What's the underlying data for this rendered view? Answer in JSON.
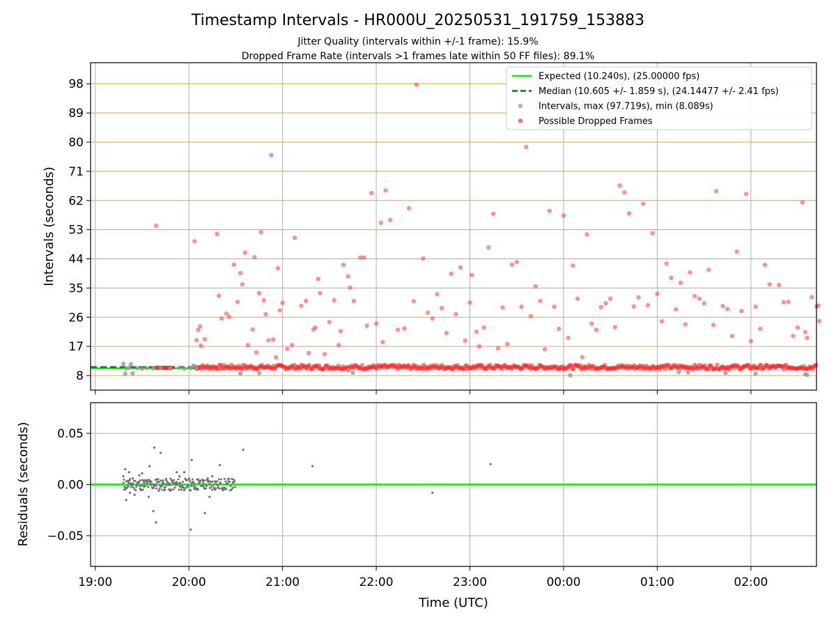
{
  "chart_data": [
    {
      "type": "scatter",
      "title": "Timestamp Intervals - HR000U_20250531_191759_153883",
      "subtitle_lines": [
        "Jitter Quality (intervals within +/-1 frame): 15.9%",
        "Dropped Frame Rate (intervals >1 frames late within 50 FF files): 89.1%"
      ],
      "ylabel": "Intervals (seconds)",
      "xlabel": "",
      "x_units": "hours since 19:00 UTC (ticks labelled as clock times)",
      "xlim": [
        -0.05,
        7.7
      ],
      "ylim": [
        3.5,
        104.5
      ],
      "yticks": [
        8,
        17,
        26,
        35,
        44,
        53,
        62,
        71,
        80,
        89,
        98
      ],
      "ytick_labels": [
        "8",
        "17",
        "26",
        "35",
        "44",
        "53",
        "62",
        "71",
        "80",
        "89",
        "98"
      ],
      "hlines": {
        "values": [
          8,
          17,
          26,
          35,
          44,
          53,
          62,
          71,
          80,
          89,
          98
        ],
        "color": "#d4b86a"
      },
      "grid": true,
      "legend_position": "top-right",
      "legend": [
        {
          "label": "Expected (10.240s), (25.00000 fps)",
          "kind": "line",
          "color": "#00ee00"
        },
        {
          "label": "Median (10.605 +/- 1.859 s), (24.14477 +/- 2.41 fps)",
          "kind": "dashed",
          "color": "#008000"
        },
        {
          "label": "Intervals, max (97.719s), min (8.089s)",
          "kind": "dot",
          "color": "#999999"
        },
        {
          "label": "Possible Dropped Frames",
          "kind": "dot",
          "color": "#ff3b3b"
        }
      ],
      "series": [
        {
          "name": "Expected (10.240s), (25.00000 fps)",
          "kind": "hline",
          "value": 10.24,
          "x_range": [
            -0.05,
            1.1
          ],
          "color": "#00ee00"
        },
        {
          "name": "Median (10.605 +/- 1.859 s), (24.14477 +/- 2.41 fps)",
          "kind": "hline",
          "value": 10.605,
          "x_range": [
            -0.05,
            1.1
          ],
          "color": "#008000"
        },
        {
          "name": "Intervals, max (97.719s), min (8.089s)",
          "kind": "points",
          "color": "#999999",
          "points": [
            [
              0.3,
              11.6
            ],
            [
              0.32,
              8.6
            ],
            [
              0.38,
              11.5
            ],
            [
              0.4,
              8.7
            ],
            [
              0.33,
              10.2
            ],
            [
              0.36,
              10.4
            ],
            [
              0.45,
              10.3
            ],
            [
              0.5,
              10.1
            ],
            [
              0.55,
              10.3
            ],
            [
              0.62,
              10.2
            ],
            [
              0.7,
              10.3
            ],
            [
              0.8,
              10.2
            ],
            [
              0.9,
              10.4
            ],
            [
              0.95,
              10.1
            ],
            [
              1.02,
              10.3
            ],
            [
              1.05,
              11.0
            ],
            [
              1.08,
              10.2
            ],
            [
              1.55,
              8.7
            ],
            [
              1.75,
              8.8
            ],
            [
              2.7,
              9.6
            ],
            [
              2.75,
              8.9
            ],
            [
              5.07,
              8.1
            ],
            [
              6.23,
              9.1
            ],
            [
              6.33,
              9.0
            ],
            [
              6.73,
              8.8
            ],
            [
              7.05,
              8.6
            ],
            [
              7.58,
              8.4
            ],
            [
              7.6,
              8.2
            ]
          ]
        },
        {
          "name": "Possible Dropped Frames",
          "kind": "points",
          "color": "#ff3b3b",
          "points": [
            [
              0.65,
              54.2
            ],
            [
              1.06,
              49.4
            ],
            [
              1.08,
              18.9
            ],
            [
              1.1,
              22.1
            ],
            [
              1.12,
              23.2
            ],
            [
              1.13,
              17.2
            ],
            [
              1.17,
              19.2
            ],
            [
              1.3,
              51.7
            ],
            [
              1.32,
              32.6
            ],
            [
              1.35,
              25.6
            ],
            [
              1.4,
              27.1
            ],
            [
              1.43,
              26.1
            ],
            [
              1.48,
              42.2
            ],
            [
              1.52,
              30.7
            ],
            [
              1.55,
              39.6
            ],
            [
              1.57,
              36.1
            ],
            [
              1.6,
              45.9
            ],
            [
              1.63,
              17.4
            ],
            [
              1.68,
              22.2
            ],
            [
              1.7,
              44.5
            ],
            [
              1.72,
              15.1
            ],
            [
              1.75,
              33.4
            ],
            [
              1.77,
              52.2
            ],
            [
              1.8,
              31.2
            ],
            [
              1.82,
              26.9
            ],
            [
              1.85,
              18.9
            ],
            [
              1.88,
              76.0
            ],
            [
              1.9,
              19.1
            ],
            [
              1.93,
              13.6
            ],
            [
              1.95,
              41.1
            ],
            [
              1.97,
              28.1
            ],
            [
              2.0,
              30.4
            ],
            [
              2.05,
              16.2
            ],
            [
              2.1,
              17.4
            ],
            [
              2.13,
              50.5
            ],
            [
              2.2,
              29.5
            ],
            [
              2.25,
              31.0
            ],
            [
              2.28,
              14.9
            ],
            [
              2.33,
              22.2
            ],
            [
              2.35,
              22.8
            ],
            [
              2.38,
              37.8
            ],
            [
              2.4,
              33.4
            ],
            [
              2.45,
              14.6
            ],
            [
              2.5,
              24.5
            ],
            [
              2.55,
              31.2
            ],
            [
              2.6,
              17.4
            ],
            [
              2.62,
              21.7
            ],
            [
              2.65,
              42.1
            ],
            [
              2.7,
              38.6
            ],
            [
              2.72,
              35.1
            ],
            [
              2.76,
              31.0
            ],
            [
              2.83,
              44.4
            ],
            [
              2.87,
              44.4
            ],
            [
              2.9,
              23.4
            ],
            [
              2.95,
              64.3
            ],
            [
              3.0,
              24.0
            ],
            [
              3.05,
              55.1
            ],
            [
              3.07,
              18.3
            ],
            [
              3.1,
              65.1
            ],
            [
              3.15,
              56.0
            ],
            [
              3.23,
              22.1
            ],
            [
              3.3,
              22.5
            ],
            [
              3.35,
              59.6
            ],
            [
              3.4,
              30.9
            ],
            [
              3.43,
              97.7
            ],
            [
              3.5,
              44.1
            ],
            [
              3.55,
              27.4
            ],
            [
              3.6,
              25.6
            ],
            [
              3.65,
              33.1
            ],
            [
              3.7,
              28.8
            ],
            [
              3.75,
              21.1
            ],
            [
              3.8,
              39.4
            ],
            [
              3.85,
              26.9
            ],
            [
              3.9,
              41.3
            ],
            [
              3.95,
              18.8
            ],
            [
              4.0,
              30.5
            ],
            [
              4.02,
              39.0
            ],
            [
              4.07,
              21.5
            ],
            [
              4.1,
              17.0
            ],
            [
              4.15,
              22.8
            ],
            [
              4.2,
              47.5
            ],
            [
              4.25,
              57.9
            ],
            [
              4.3,
              16.4
            ],
            [
              4.35,
              29.0
            ],
            [
              4.4,
              17.7
            ],
            [
              4.45,
              42.2
            ],
            [
              4.5,
              43.0
            ],
            [
              4.55,
              29.2
            ],
            [
              4.6,
              78.5
            ],
            [
              4.65,
              26.3
            ],
            [
              4.7,
              35.5
            ],
            [
              4.75,
              31.0
            ],
            [
              4.8,
              16.1
            ],
            [
              4.85,
              58.8
            ],
            [
              4.9,
              29.2
            ],
            [
              4.95,
              22.4
            ],
            [
              5.0,
              57.3
            ],
            [
              5.05,
              19.6
            ],
            [
              5.1,
              41.9
            ],
            [
              5.15,
              31.7
            ],
            [
              5.2,
              13.7
            ],
            [
              5.25,
              51.5
            ],
            [
              5.3,
              24.0
            ],
            [
              5.35,
              22.1
            ],
            [
              5.4,
              29.1
            ],
            [
              5.45,
              30.3
            ],
            [
              5.5,
              31.7
            ],
            [
              5.55,
              22.9
            ],
            [
              5.6,
              66.6
            ],
            [
              5.65,
              64.5
            ],
            [
              5.7,
              58.0
            ],
            [
              5.75,
              29.3
            ],
            [
              5.8,
              32.1
            ],
            [
              5.85,
              61.0
            ],
            [
              5.9,
              29.7
            ],
            [
              5.95,
              51.9
            ],
            [
              6.0,
              33.2
            ],
            [
              6.05,
              24.7
            ],
            [
              6.1,
              42.5
            ],
            [
              6.15,
              38.1
            ],
            [
              6.2,
              28.4
            ],
            [
              6.25,
              36.6
            ],
            [
              6.3,
              23.8
            ],
            [
              6.35,
              39.8
            ],
            [
              6.4,
              32.5
            ],
            [
              6.45,
              31.7
            ],
            [
              6.5,
              30.3
            ],
            [
              6.55,
              40.6
            ],
            [
              6.6,
              23.6
            ],
            [
              6.63,
              64.9
            ],
            [
              6.7,
              29.4
            ],
            [
              6.75,
              28.5
            ],
            [
              6.8,
              20.2
            ],
            [
              6.85,
              46.2
            ],
            [
              6.9,
              27.9
            ],
            [
              6.95,
              64.0
            ],
            [
              7.0,
              18.6
            ],
            [
              7.05,
              29.2
            ],
            [
              7.1,
              22.4
            ],
            [
              7.15,
              42.1
            ],
            [
              7.2,
              36.1
            ],
            [
              7.3,
              35.9
            ],
            [
              7.35,
              30.6
            ],
            [
              7.4,
              30.7
            ],
            [
              7.45,
              20.2
            ],
            [
              7.5,
              22.8
            ],
            [
              7.55,
              61.4
            ],
            [
              7.58,
              21.4
            ],
            [
              7.6,
              19.6
            ],
            [
              7.65,
              32.2
            ],
            [
              7.7,
              29.3
            ],
            [
              7.72,
              29.6
            ],
            [
              7.73,
              24.8
            ]
          ]
        }
      ]
    },
    {
      "type": "scatter",
      "title": "",
      "ylabel": "Residuals (seconds)",
      "xlabel": "Time (UTC)",
      "xlim": [
        -0.05,
        7.7
      ],
      "xticks": [
        0,
        1,
        2,
        3,
        4,
        5,
        6,
        7
      ],
      "xtick_labels": [
        "19:00",
        "20:00",
        "21:00",
        "22:00",
        "23:00",
        "00:00",
        "01:00",
        "02:00"
      ],
      "ylim": [
        -0.08,
        0.08
      ],
      "yticks": [
        -0.05,
        0.0,
        0.05
      ],
      "ytick_labels": [
        "−0.05",
        "0.00",
        "0.05"
      ],
      "grid": true,
      "series": [
        {
          "name": "",
          "kind": "hline",
          "value": 0.0,
          "color": "#00ee00"
        },
        {
          "name": "",
          "kind": "points",
          "color": "#707070",
          "points": [
            [
              0.3,
              0.008
            ],
            [
              0.31,
              -0.005
            ],
            [
              0.32,
              0.015
            ],
            [
              0.33,
              -0.015
            ],
            [
              0.35,
              0.003
            ],
            [
              0.36,
              0.012
            ],
            [
              0.37,
              -0.008
            ],
            [
              0.38,
              0.001
            ],
            [
              0.4,
              0.006
            ],
            [
              0.42,
              -0.01
            ],
            [
              0.45,
              0.002
            ],
            [
              0.47,
              0.009
            ],
            [
              0.48,
              -0.004
            ],
            [
              0.5,
              0.011
            ],
            [
              0.52,
              -0.002
            ],
            [
              0.55,
              0.004
            ],
            [
              0.57,
              -0.012
            ],
            [
              0.58,
              0.018
            ],
            [
              0.6,
              0.0
            ],
            [
              0.62,
              -0.026
            ],
            [
              0.63,
              0.036
            ],
            [
              0.65,
              -0.037
            ],
            [
              0.66,
              0.005
            ],
            [
              0.68,
              -0.006
            ],
            [
              0.7,
              0.031
            ],
            [
              0.72,
              0.002
            ],
            [
              0.74,
              -0.003
            ],
            [
              0.76,
              0.004
            ],
            [
              0.78,
              0.0
            ],
            [
              0.8,
              -0.006
            ],
            [
              0.82,
              0.003
            ],
            [
              0.85,
              -0.003
            ],
            [
              0.87,
              0.012
            ],
            [
              0.9,
              0.008
            ],
            [
              0.92,
              -0.005
            ],
            [
              0.95,
              0.012
            ],
            [
              0.97,
              -0.003
            ],
            [
              1.0,
              0.005
            ],
            [
              1.02,
              -0.044
            ],
            [
              1.03,
              0.024
            ],
            [
              1.05,
              0.002
            ],
            [
              1.1,
              0.005
            ],
            [
              1.15,
              0.004
            ],
            [
              1.17,
              -0.028
            ],
            [
              1.2,
              0.006
            ],
            [
              1.22,
              -0.012
            ],
            [
              1.25,
              0.008
            ],
            [
              1.28,
              0.003
            ],
            [
              1.33,
              0.019
            ],
            [
              1.47,
              0.002
            ],
            [
              1.58,
              0.034
            ],
            [
              2.32,
              0.018
            ],
            [
              3.6,
              -0.008
            ],
            [
              4.22,
              0.02
            ]
          ]
        }
      ]
    }
  ]
}
